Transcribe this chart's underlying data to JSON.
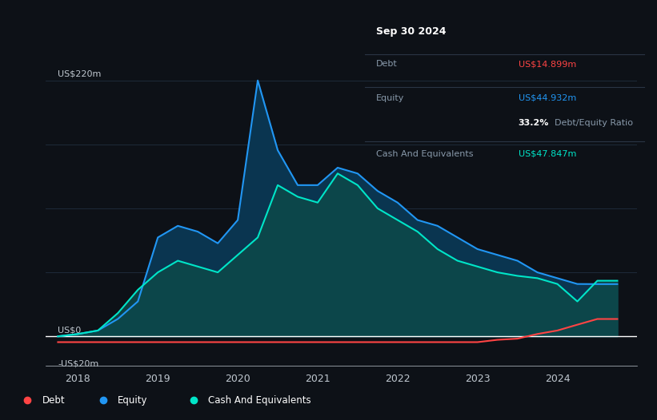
{
  "bg_color": "#0d1117",
  "plot_bg_color": "#0d1117",
  "ylabel_top": "US$220m",
  "ylabel_zero": "US$0",
  "ylabel_neg": "-US$20m",
  "ylim": [
    -25,
    235
  ],
  "xtick_labels": [
    "2018",
    "2019",
    "2020",
    "2021",
    "2022",
    "2023",
    "2024"
  ],
  "tooltip": {
    "date": "Sep 30 2024",
    "debt_label": "Debt",
    "debt_value": "US$14.899m",
    "equity_label": "Equity",
    "equity_value": "US$44.932m",
    "ratio_value": "33.2%",
    "ratio_label": "Debt/Equity Ratio",
    "cash_label": "Cash And Equivalents",
    "cash_value": "US$47.847m"
  },
  "equity_color": "#2196f3",
  "cash_color": "#00e5c8",
  "debt_color": "#ff4444",
  "equity_fill_color": "#0a3550",
  "cash_fill_color": "#0d4a4a",
  "grid_color": "#1e2a3a",
  "text_color": "#c0c8d0",
  "time_x": [
    2017.75,
    2018.0,
    2018.25,
    2018.5,
    2018.75,
    2019.0,
    2019.25,
    2019.5,
    2019.75,
    2020.0,
    2020.25,
    2020.5,
    2020.75,
    2021.0,
    2021.25,
    2021.5,
    2021.75,
    2022.0,
    2022.25,
    2022.5,
    2022.75,
    2023.0,
    2023.25,
    2023.5,
    2023.75,
    2024.0,
    2024.25,
    2024.5,
    2024.75
  ],
  "equity_y": [
    0,
    2,
    5,
    15,
    30,
    85,
    95,
    90,
    80,
    100,
    220,
    160,
    130,
    130,
    145,
    140,
    125,
    115,
    100,
    95,
    85,
    75,
    70,
    65,
    55,
    50,
    45,
    44.9,
    44.9
  ],
  "cash_y": [
    0,
    2,
    5,
    20,
    40,
    55,
    65,
    60,
    55,
    70,
    85,
    130,
    120,
    115,
    140,
    130,
    110,
    100,
    90,
    75,
    65,
    60,
    55,
    52,
    50,
    45,
    30,
    47.8,
    47.8
  ],
  "debt_y": [
    -5,
    -5,
    -5,
    -5,
    -5,
    -5,
    -5,
    -5,
    -5,
    -5,
    -5,
    -5,
    -5,
    -5,
    -5,
    -5,
    -5,
    -5,
    -5,
    -5,
    -5,
    -5,
    -3,
    -2,
    2,
    5,
    10,
    14.9,
    14.9
  ]
}
